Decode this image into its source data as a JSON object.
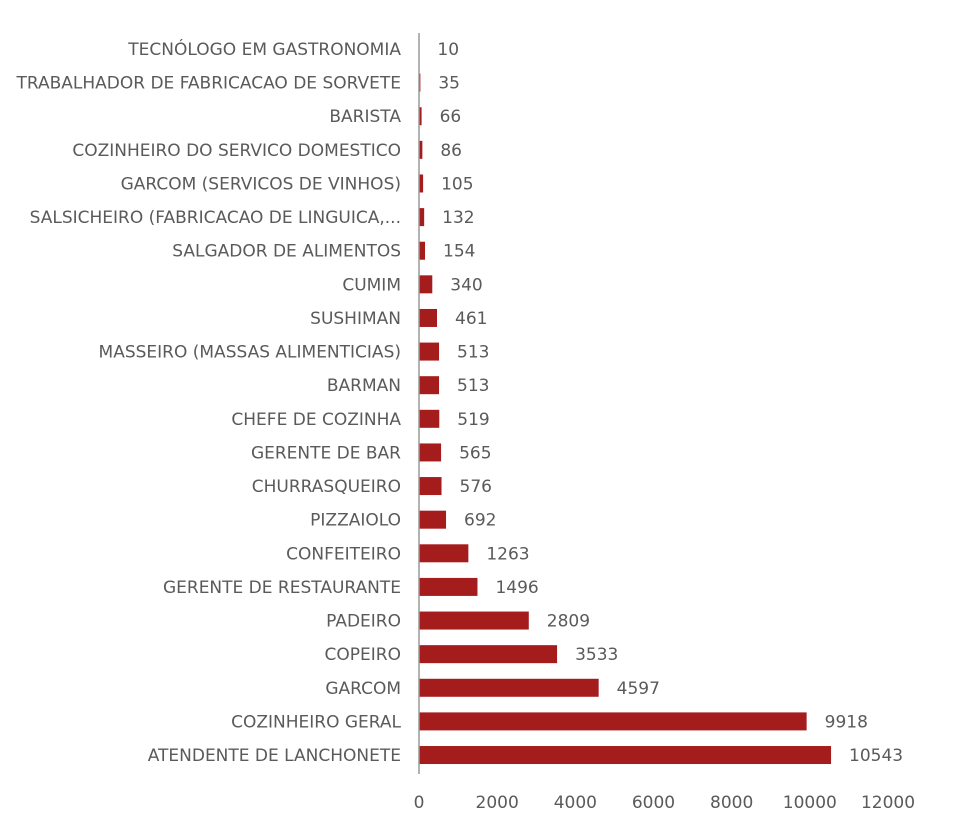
{
  "chart_data": {
    "type": "bar",
    "orientation": "horizontal",
    "categories": [
      "TECNÓLOGO EM GASTRONOMIA",
      "TRABALHADOR DE FABRICACAO DE SORVETE",
      "BARISTA",
      "COZINHEIRO DO SERVICO DOMESTICO",
      "GARCOM (SERVICOS DE VINHOS)",
      "SALSICHEIRO (FABRICACAO DE LINGUICA,...",
      "SALGADOR DE ALIMENTOS",
      "CUMIM",
      "SUSHIMAN",
      "MASSEIRO (MASSAS ALIMENTICIAS)",
      "BARMAN",
      "CHEFE DE COZINHA",
      "GERENTE DE BAR",
      "CHURRASQUEIRO",
      "PIZZAIOLO",
      "CONFEITEIRO",
      "GERENTE DE RESTAURANTE",
      "PADEIRO",
      "COPEIRO",
      "GARCOM",
      "COZINHEIRO GERAL",
      "ATENDENTE DE LANCHONETE"
    ],
    "values": [
      10,
      35,
      66,
      86,
      105,
      132,
      154,
      340,
      461,
      513,
      513,
      519,
      565,
      576,
      692,
      1263,
      1496,
      2809,
      3533,
      4597,
      9918,
      10543
    ],
    "xlim": [
      0,
      12000
    ],
    "xticks": [
      "0",
      "2000",
      "4000",
      "6000",
      "8000",
      "10000",
      "12000"
    ],
    "bar_color": "#a51c1c",
    "axis_color": "#9a9a9a",
    "text_color": "#5a5a5a",
    "grid": false,
    "legend": "none",
    "data_labels": true
  }
}
